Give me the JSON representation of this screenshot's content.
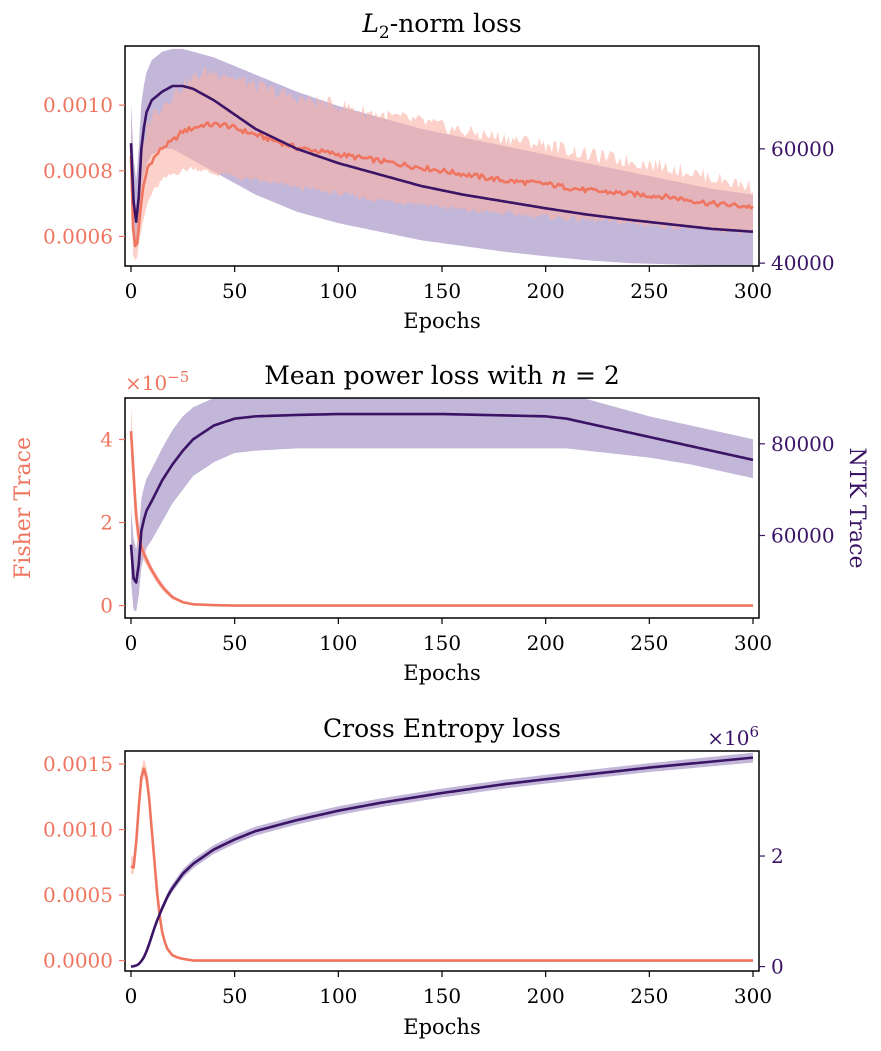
{
  "figure": {
    "fisher_color": "#f07560",
    "fisher_band_color": "#f9b3a6",
    "ntk_color": "#3b1466",
    "ntk_band_color": "#9a86bf",
    "left_ylabel": "Fisher Trace",
    "right_ylabel": "NTK Trace"
  },
  "chart_data": [
    {
      "type": "line",
      "title_prefix": "L",
      "title_sub": "2",
      "title_suffix": "-norm loss",
      "xlabel": "Epochs",
      "xlim": [
        0,
        300
      ],
      "xticks": [
        0,
        50,
        100,
        150,
        200,
        250,
        300
      ],
      "xtick_labels": [
        "0",
        "50",
        "100",
        "150",
        "200",
        "250",
        "300"
      ],
      "left_ylim": [
        0.00051,
        0.00118
      ],
      "left_yticks": [
        0.0006,
        0.0008,
        0.001
      ],
      "left_ytick_labels": [
        "0.0006",
        "0.0008",
        "0.0010"
      ],
      "right_ylim": [
        39500,
        78000
      ],
      "right_yticks": [
        40000,
        60000
      ],
      "right_ytick_labels": [
        "40000",
        "60000"
      ],
      "left_multiplier": "",
      "right_multiplier": "",
      "series": [
        {
          "axis": "left",
          "noisy": true,
          "x": [
            0,
            1,
            2,
            3,
            4,
            6,
            8,
            10,
            15,
            20,
            25,
            30,
            35,
            40,
            45,
            50,
            60,
            70,
            80,
            90,
            100,
            120,
            140,
            160,
            180,
            200,
            220,
            240,
            260,
            280,
            300
          ],
          "y": [
            0.00085,
            0.00062,
            0.00057,
            0.00058,
            0.00065,
            0.00075,
            0.00081,
            0.00083,
            0.00087,
            0.00089,
            0.00092,
            0.00093,
            0.00094,
            0.00094,
            0.00094,
            0.00093,
            0.00091,
            0.00089,
            0.00087,
            0.00086,
            0.00085,
            0.00083,
            0.00081,
            0.00079,
            0.00077,
            0.00076,
            0.00074,
            0.00073,
            0.00072,
            0.0007,
            0.00069
          ],
          "lower": [
            0.0008,
            0.00055,
            0.00053,
            0.00054,
            0.00058,
            0.00065,
            0.0007,
            0.00073,
            0.00077,
            0.00079,
            0.0008,
            0.00081,
            0.0008,
            0.00079,
            0.00079,
            0.00078,
            0.00077,
            0.00076,
            0.00075,
            0.00074,
            0.00073,
            0.00071,
            0.0007,
            0.00068,
            0.00067,
            0.00066,
            0.00065,
            0.00064,
            0.00063,
            0.00062,
            0.00061
          ],
          "upper": [
            0.00098,
            0.0007,
            0.00063,
            0.00065,
            0.00074,
            0.00088,
            0.00094,
            0.00097,
            0.001,
            0.00103,
            0.00106,
            0.00108,
            0.0011,
            0.0011,
            0.0011,
            0.00108,
            0.00106,
            0.00104,
            0.00102,
            0.00101,
            0.001,
            0.00097,
            0.00095,
            0.00092,
            0.0009,
            0.00088,
            0.00085,
            0.00083,
            0.00081,
            0.00078,
            0.00075
          ]
        },
        {
          "axis": "right",
          "noisy": false,
          "x": [
            0,
            1,
            2,
            3,
            4,
            5,
            7,
            10,
            15,
            20,
            25,
            30,
            40,
            50,
            60,
            80,
            100,
            120,
            140,
            160,
            180,
            200,
            220,
            240,
            260,
            280,
            300
          ],
          "y": [
            61000,
            52000,
            47000,
            47500,
            53000,
            60000,
            66000,
            68500,
            70000,
            71000,
            71000,
            70500,
            68500,
            66000,
            63500,
            60000,
            57500,
            55500,
            53500,
            52000,
            50800,
            49600,
            48500,
            47600,
            46800,
            46000,
            45500
          ],
          "lower": [
            55000,
            45000,
            42000,
            43000,
            48000,
            53000,
            57000,
            59000,
            60000,
            60000,
            59000,
            58000,
            56000,
            54000,
            52000,
            49000,
            47000,
            45500,
            44000,
            43000,
            42000,
            41200,
            40500,
            40000,
            39800,
            39600,
            39500
          ],
          "upper": [
            68000,
            60000,
            54000,
            55000,
            62000,
            68000,
            73000,
            75500,
            77000,
            77500,
            77500,
            77000,
            76000,
            74500,
            73000,
            70000,
            67500,
            65500,
            63500,
            62000,
            60500,
            59000,
            57500,
            56000,
            54500,
            53000,
            52000
          ]
        }
      ]
    },
    {
      "type": "line",
      "title_prefix": "Mean power loss with ",
      "title_var": "n",
      "title_suffix": " = 2",
      "xlabel": "Epochs",
      "xlim": [
        0,
        300
      ],
      "xticks": [
        0,
        50,
        100,
        150,
        200,
        250,
        300
      ],
      "xtick_labels": [
        "0",
        "50",
        "100",
        "150",
        "200",
        "250",
        "300"
      ],
      "left_ylim": [
        -0.3,
        5.0
      ],
      "left_yticks": [
        0,
        2,
        4
      ],
      "left_ytick_labels": [
        "0",
        "2",
        "4"
      ],
      "right_ylim": [
        42000,
        90000
      ],
      "right_yticks": [
        60000,
        80000
      ],
      "right_ytick_labels": [
        "60000",
        "80000"
      ],
      "left_multiplier": "×10",
      "left_multiplier_exp": "−5",
      "right_multiplier": "",
      "series": [
        {
          "axis": "left",
          "noisy": false,
          "x": [
            0,
            1,
            2,
            3,
            5,
            7,
            10,
            13,
            16,
            20,
            25,
            30,
            40,
            50,
            100,
            150,
            200,
            250,
            300
          ],
          "y": [
            4.2,
            3.4,
            2.5,
            1.8,
            1.4,
            1.15,
            0.85,
            0.6,
            0.4,
            0.2,
            0.08,
            0.03,
            0.01,
            0.0,
            0.0,
            0.0,
            0.0,
            0.0,
            0.0
          ],
          "lower": [
            3.6,
            2.8,
            2.0,
            1.5,
            1.2,
            1.0,
            0.75,
            0.5,
            0.32,
            0.15,
            0.05,
            0.02,
            0.0,
            0.0,
            0.0,
            0.0,
            0.0,
            0.0,
            0.0
          ],
          "upper": [
            4.8,
            4.0,
            3.0,
            2.2,
            1.6,
            1.3,
            0.95,
            0.7,
            0.48,
            0.25,
            0.11,
            0.05,
            0.02,
            0.01,
            0.01,
            0.01,
            0.01,
            0.01,
            0.01
          ]
        },
        {
          "axis": "right",
          "noisy": false,
          "x": [
            0,
            1,
            2,
            3,
            4,
            5,
            7,
            10,
            15,
            20,
            25,
            30,
            40,
            50,
            60,
            80,
            100,
            150,
            200,
            210,
            230,
            250,
            270,
            290,
            300
          ],
          "y": [
            58000,
            51000,
            49500,
            50000,
            55000,
            61000,
            65000,
            67500,
            72000,
            75500,
            78500,
            81000,
            84000,
            85500,
            86000,
            86300,
            86500,
            86500,
            86000,
            85500,
            83500,
            81500,
            79500,
            77500,
            76500
          ],
          "lower": [
            50000,
            44000,
            43000,
            44000,
            48000,
            53000,
            57000,
            59000,
            63000,
            67000,
            70000,
            73000,
            76000,
            78000,
            78500,
            79000,
            79000,
            79000,
            79000,
            79000,
            78000,
            77000,
            75500,
            73500,
            72500
          ],
          "upper": [
            66000,
            60000,
            57000,
            57000,
            62000,
            68000,
            72000,
            74500,
            79000,
            83000,
            86000,
            88000,
            90000,
            91000,
            91500,
            92000,
            92000,
            92000,
            91500,
            91000,
            88500,
            86000,
            84000,
            82000,
            81000
          ]
        }
      ]
    },
    {
      "type": "line",
      "title": "Cross Entropy loss",
      "xlabel": "Epochs",
      "xlim": [
        0,
        300
      ],
      "xticks": [
        0,
        50,
        100,
        150,
        200,
        250,
        300
      ],
      "xtick_labels": [
        "0",
        "50",
        "100",
        "150",
        "200",
        "250",
        "300"
      ],
      "left_ylim": [
        -8e-05,
        0.0016
      ],
      "left_yticks": [
        0.0,
        0.0005,
        0.001,
        0.0015
      ],
      "left_ytick_labels": [
        "0.0000",
        "0.0005",
        "0.0010",
        "0.0015"
      ],
      "right_ylim": [
        -0.08,
        3.9
      ],
      "right_yticks": [
        0,
        2
      ],
      "right_ytick_labels": [
        "0",
        "2"
      ],
      "left_multiplier": "",
      "right_multiplier": "×10",
      "right_multiplier_exp": "6",
      "series": [
        {
          "axis": "left",
          "noisy": false,
          "x": [
            0,
            1,
            2,
            3,
            4,
            5,
            6,
            7,
            8,
            9,
            10,
            11,
            12,
            13,
            14,
            15,
            17,
            20,
            23,
            26,
            30,
            40,
            50,
            100,
            150,
            200,
            250,
            300
          ],
          "y": [
            0.00072,
            0.00068,
            0.0008,
            0.001,
            0.00123,
            0.0014,
            0.00147,
            0.00145,
            0.00135,
            0.0012,
            0.001,
            0.00082,
            0.00062,
            0.00045,
            0.00032,
            0.00022,
            0.0001,
            4e-05,
            2e-05,
            1e-05,
            0.0,
            0.0,
            0.0,
            0.0,
            0.0,
            0.0,
            0.0,
            0.0
          ],
          "lower": [
            0.00066,
            0.00063,
            0.00075,
            0.00095,
            0.00118,
            0.00134,
            0.00141,
            0.00139,
            0.00129,
            0.00114,
            0.00095,
            0.00077,
            0.00058,
            0.00042,
            0.00029,
            0.0002,
            9e-05,
            3e-05,
            1e-05,
            0.0,
            0.0,
            0.0,
            0.0,
            0.0,
            0.0,
            0.0,
            0.0,
            0.0
          ],
          "upper": [
            0.0008,
            0.00076,
            0.00088,
            0.00108,
            0.0013,
            0.00147,
            0.00155,
            0.00153,
            0.00142,
            0.00127,
            0.00106,
            0.00088,
            0.00067,
            0.00049,
            0.00035,
            0.00025,
            0.00012,
            5e-05,
            3e-05,
            2e-05,
            1e-05,
            1e-05,
            1e-05,
            1e-05,
            1e-05,
            1e-05,
            1e-05,
            1e-05
          ]
        },
        {
          "axis": "right",
          "noisy": false,
          "x": [
            0,
            2,
            4,
            6,
            8,
            10,
            12,
            15,
            18,
            20,
            25,
            30,
            40,
            50,
            60,
            80,
            100,
            120,
            150,
            180,
            200,
            250,
            300
          ],
          "y": [
            0.0,
            0.01,
            0.05,
            0.15,
            0.32,
            0.55,
            0.78,
            1.05,
            1.3,
            1.42,
            1.68,
            1.86,
            2.12,
            2.3,
            2.45,
            2.65,
            2.82,
            2.96,
            3.14,
            3.3,
            3.39,
            3.6,
            3.78
          ],
          "lower": [
            0.0,
            0.0,
            0.04,
            0.13,
            0.29,
            0.51,
            0.73,
            0.99,
            1.23,
            1.35,
            1.6,
            1.78,
            2.04,
            2.22,
            2.37,
            2.57,
            2.74,
            2.88,
            3.06,
            3.22,
            3.31,
            3.52,
            3.69
          ],
          "upper": [
            0.01,
            0.02,
            0.07,
            0.18,
            0.36,
            0.6,
            0.84,
            1.12,
            1.37,
            1.5,
            1.76,
            1.94,
            2.2,
            2.38,
            2.53,
            2.73,
            2.9,
            3.04,
            3.22,
            3.38,
            3.47,
            3.68,
            3.87
          ]
        }
      ]
    }
  ]
}
